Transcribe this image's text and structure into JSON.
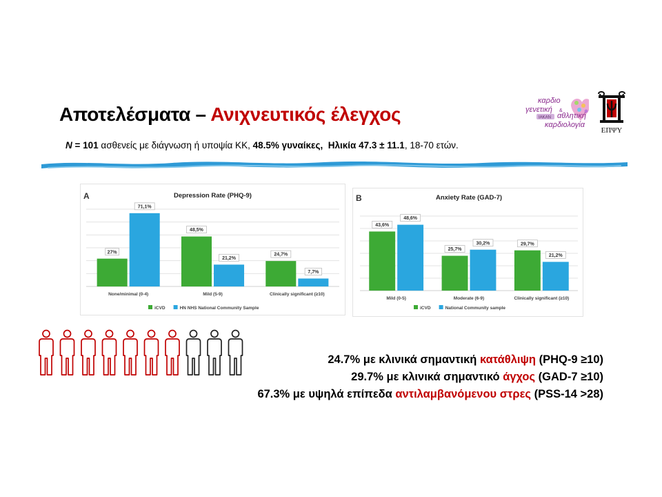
{
  "slide": {
    "title_main": "Αποτελέσματα – ",
    "title_accent": "Ανιχνευτικός έλεγχος",
    "subtitle": {
      "n_label": "N",
      "n_eq": " = ",
      "n_value": "101",
      "part1": " ασθενείς με διάγνωση ή υποψία ΚΚ, ",
      "women": "48.5% γυναίκες,",
      "gap": "  ",
      "age": "Ηλικία 47.3 ± 11.1",
      "range": ", 18-70 ετών."
    },
    "logo_left": {
      "lines": [
        "καρδιο",
        "γενετική",
        "&",
        "αθλητική",
        "καρδιολογία"
      ],
      "badge": "ΙΑΚΑΝ"
    },
    "logo_right": {
      "text": "ΕΠΨΥ"
    },
    "accent_color": "#c00000",
    "wave_color": "#2e9ad6"
  },
  "people": {
    "total": 10,
    "highlighted": 7,
    "highlight_color": "#c00000",
    "other_color": "#222222",
    "icon": "person-icon"
  },
  "stats": [
    {
      "pre": "24.7% με κλινικά σημαντική ",
      "accent": "κατάθλιψη",
      "post": " (PHQ-9 ≥10)"
    },
    {
      "pre": "29.7% με κλινικά σημαντικό ",
      "accent": "άγχος",
      "post": " (GAD-7 ≥10)"
    },
    {
      "pre": "67.3% με υψηλά επίπεδα ",
      "accent": "αντιλαμβανόμενου στρες",
      "post": " (PSS-14 >28)"
    }
  ],
  "chart_data": [
    {
      "type": "bar",
      "panel": "A",
      "title": "Depression Rate (PHQ-9)",
      "categories": [
        "None/minimal (0-4)",
        "Mild (5-9)",
        "Clinically significant (≥10)"
      ],
      "series": [
        {
          "name": "iCVD",
          "values": [
            27,
            48.5,
            24.7
          ],
          "labels": [
            "27%",
            "48,5%",
            "24,7%"
          ],
          "color": "#3daa35"
        },
        {
          "name": "HN NHS National Community Sample",
          "values": [
            71.1,
            21.2,
            7.7
          ],
          "labels": [
            "71,1%",
            "21,2%",
            "7,7%"
          ],
          "color": "#2aa6df"
        }
      ],
      "ylim": [
        0,
        75
      ],
      "grid": true,
      "legend": "bottom"
    },
    {
      "type": "bar",
      "panel": "B",
      "title": "Anxiety Rate (GAD-7)",
      "categories": [
        "Mild (0-5)",
        "Moderate (6-9)",
        "Clinically significant (≥10)"
      ],
      "series": [
        {
          "name": "iCVD",
          "values": [
            43.6,
            25.7,
            29.7
          ],
          "labels": [
            "43,6%",
            "25,7%",
            "29,7%"
          ],
          "color": "#3daa35"
        },
        {
          "name": "National Community sample",
          "values": [
            48.6,
            30.2,
            21.2
          ],
          "labels": [
            "48,6%",
            "30,2%",
            "21,2%"
          ],
          "color": "#2aa6df"
        }
      ],
      "ylim": [
        0,
        55
      ],
      "grid": true,
      "legend": "bottom"
    }
  ]
}
